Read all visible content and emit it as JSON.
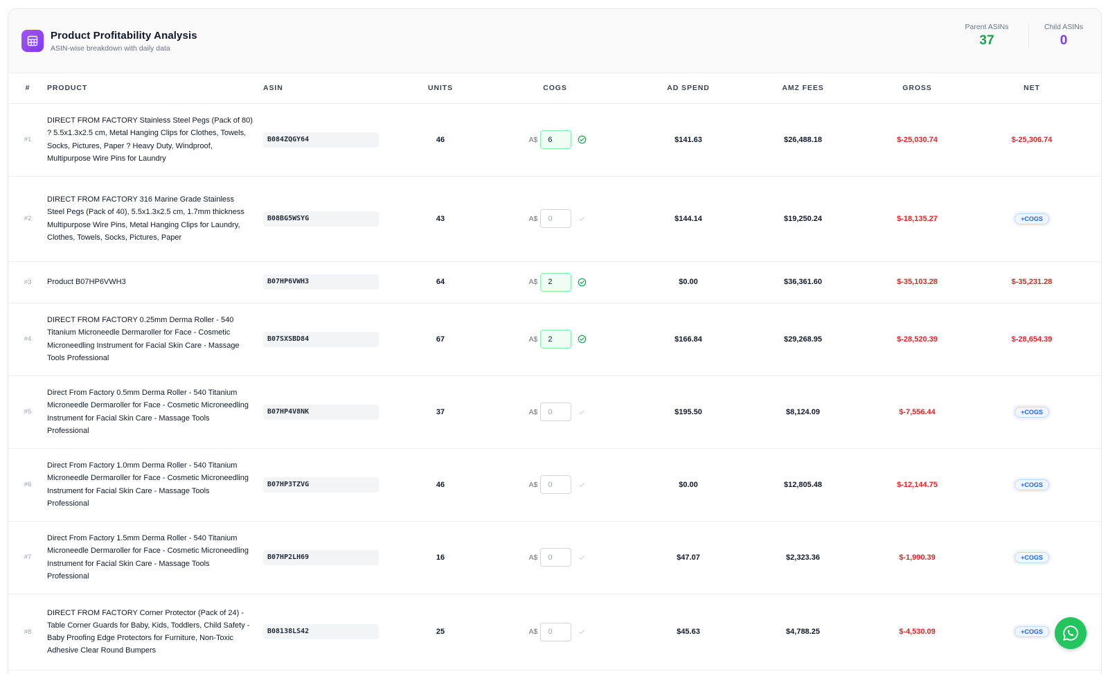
{
  "header": {
    "title": "Product Profitability Analysis",
    "subtitle": "ASIN-wise breakdown with daily data",
    "icon": "table-icon",
    "accent_color": "#8b5cf6"
  },
  "stats": {
    "parent_label": "Parent ASINs",
    "parent_value": "37",
    "child_label": "Child ASINs",
    "child_value": "0"
  },
  "columns": {
    "num": "#",
    "product": "PRODUCT",
    "asin": "ASIN",
    "units": "UNITS",
    "cogs": "COGS",
    "ad_spend": "AD SPEND",
    "amz_fees": "AMZ FEES",
    "gross": "GROSS",
    "net": "NET"
  },
  "currency_prefix": "A$",
  "cogs_badge_label": "+COGS",
  "rows": [
    {
      "num": "#1",
      "product": "DIRECT FROM FACTORY Stainless Steel Pegs (Pack of 80) ? 5.5x1.3x2.5 cm, Metal Hanging Clips for Clothes, Towels, Socks, Pictures, Paper ? Heavy Duty, Windproof, Multipurpose Wire Pins for Laundry",
      "asin": "B084ZQGY64",
      "units": "46",
      "cogs": "6",
      "ad_spend": "$141.63",
      "amz_fees": "$26,488.18",
      "gross": "$-25,030.74",
      "net": "$-25,306.74"
    },
    {
      "num": "#2",
      "product": "DIRECT FROM FACTORY 316 Marine Grade Stainless Steel Pegs (Pack of 40), 5.5x1.3x2.5 cm, 1.7mm thickness Multipurpose Wire Pins, Metal Hanging Clips for Laundry, Clothes, Towels, Socks, Pictures, Paper",
      "asin": "B08BG5WSYG",
      "units": "43",
      "cogs": "",
      "ad_spend": "$144.14",
      "amz_fees": "$19,250.24",
      "gross": "$-18,135.27",
      "net": ""
    },
    {
      "num": "#3",
      "product": "Product B07HP6VWH3",
      "asin": "B07HP6VWH3",
      "units": "64",
      "cogs": "2",
      "ad_spend": "$0.00",
      "amz_fees": "$36,361.60",
      "gross": "$-35,103.28",
      "net": "$-35,231.28"
    },
    {
      "num": "#4",
      "product": "DIRECT FROM FACTORY 0.25mm Derma Roller - 540 Titanium Microneedle Dermaroller for Face - Cosmetic Microneedling Instrument for Facial Skin Care - Massage Tools Professional",
      "asin": "B07SXSBD84",
      "units": "67",
      "cogs": "2",
      "ad_spend": "$166.84",
      "amz_fees": "$29,268.95",
      "gross": "$-28,520.39",
      "net": "$-28,654.39"
    },
    {
      "num": "#5",
      "product": "Direct From Factory 0.5mm Derma Roller - 540 Titanium Microneedle Dermaroller for Face - Cosmetic Microneedling Instrument for Facial Skin Care - Massage Tools Professional",
      "asin": "B07HP4V8NK",
      "units": "37",
      "cogs": "",
      "ad_spend": "$195.50",
      "amz_fees": "$8,124.09",
      "gross": "$-7,556.44",
      "net": ""
    },
    {
      "num": "#6",
      "product": "Direct From Factory 1.0mm Derma Roller - 540 Titanium Microneedle Dermaroller for Face - Cosmetic Microneedling Instrument for Facial Skin Care - Massage Tools Professional",
      "asin": "B07HP3TZVG",
      "units": "46",
      "cogs": "",
      "ad_spend": "$0.00",
      "amz_fees": "$12,805.48",
      "gross": "$-12,144.75",
      "net": ""
    },
    {
      "num": "#7",
      "product": "Direct From Factory 1.5mm Derma Roller - 540 Titanium Microneedle Dermaroller for Face - Cosmetic Microneedling Instrument for Facial Skin Care - Massage Tools Professional",
      "asin": "B07HP2LH69",
      "units": "16",
      "cogs": "",
      "ad_spend": "$47.07",
      "amz_fees": "$2,323.36",
      "gross": "$-1,990.39",
      "net": ""
    },
    {
      "num": "#8",
      "product": "DIRECT FROM FACTORY Corner Protector (Pack of 24) - Table Corner Guards for Baby, Kids, Toddlers, Child Safety - Baby Proofing Edge Protectors for Furniture, Non-Toxic Adhesive Clear Round Bumpers",
      "asin": "B08138LS42",
      "units": "25",
      "cogs": "",
      "ad_spend": "$45.63",
      "amz_fees": "$4,788.25",
      "gross": "$-4,530.09",
      "net": ""
    }
  ],
  "cogs_placeholder": "0",
  "floating_button": {
    "icon": "whatsapp-icon",
    "color": "#22c55e"
  }
}
